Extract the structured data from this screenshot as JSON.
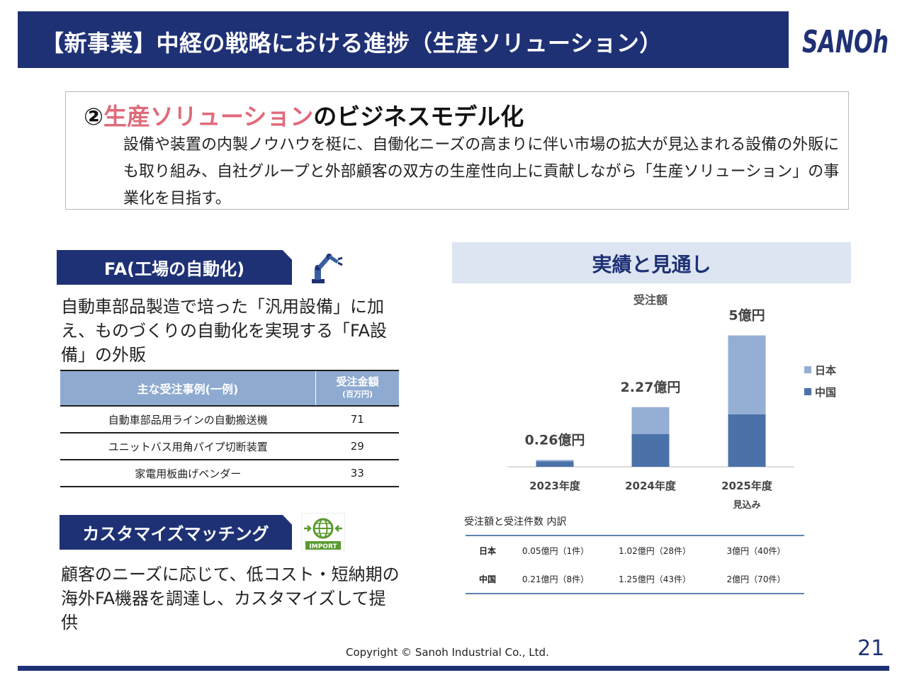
{
  "header": {
    "title": "【新事業】中経の戦略における進捗（生産ソリューション）",
    "logo_text": "SANOh",
    "brand_color": "#1f3175"
  },
  "intro": {
    "heading_prefix": "②",
    "heading_accent": "生産ソリューション",
    "heading_suffix": "のビジネスモデル化",
    "body": "設備や装置の内製ノウハウを梃に、自働化ニーズの高まりに伴い市場の拡大が見込まれる設備の外販にも取り組み、自社グループと外部顧客の双方の生産性向上に貢献しながら「生産ソリューション」の事業化を目指す。",
    "accent_color": "#e06b7b"
  },
  "fa": {
    "tab_label": "FA(工場の自動化)",
    "description": "自動車部品製造で培った「汎用設備」に加え、ものづくりの自動化を実現する「FA設備」の外販",
    "table": {
      "col1": "主な受注事例(一例)",
      "col2": "受注金額",
      "col2_unit": "(百万円)",
      "rows": [
        {
          "name": "自動車部品用ラインの自動搬送機",
          "amount": "71"
        },
        {
          "name": "ユニットバス用角パイプ切断装置",
          "amount": "29"
        },
        {
          "name": "家電用板曲げベンダー",
          "amount": "33"
        }
      ]
    }
  },
  "customize": {
    "tab_label": "カスタマイズマッチング",
    "icon_text": "IMPORT",
    "description": "顧客のニーズに応じて、低コスト・短納期の海外FA機器を調達し、カスタマイズして提供"
  },
  "results": {
    "title": "実績と見通し"
  },
  "chart_data": {
    "type": "bar",
    "stacked": true,
    "title": "受注額",
    "ylabel": "",
    "xlabel": "",
    "unit": "億円",
    "categories": [
      "2023年度",
      "2024年度",
      "2025年度"
    ],
    "category_notes": [
      "",
      "",
      "見込み"
    ],
    "series": [
      {
        "name": "中国",
        "values": [
          0.21,
          1.25,
          2
        ],
        "color": "#4a72a8"
      },
      {
        "name": "日本",
        "values": [
          0.05,
          1.02,
          3
        ],
        "color": "#95aed4"
      }
    ],
    "totals_labels": [
      "0.26億円",
      "2.27億円",
      "5億円"
    ],
    "ylim": [
      0,
      5.5
    ],
    "legend": [
      {
        "name": "日本",
        "color": "#95aed4"
      },
      {
        "name": "中国",
        "color": "#4a72a8"
      }
    ],
    "legend_position": "right",
    "grid": false
  },
  "breakdown": {
    "label": "受注額と受注件数 内訳",
    "rows": [
      {
        "country": "日本",
        "y2023": "0.05億円（1件）",
        "y2024": "1.02億円（28件）",
        "y2025": "3億円（40件）"
      },
      {
        "country": "中国",
        "y2023": "0.21億円（8件）",
        "y2024": "1.25億円（43件）",
        "y2025": "2億円（70件）"
      }
    ]
  },
  "footer": {
    "copyright": "Copyright © Sanoh Industrial Co., Ltd.",
    "page": "21"
  }
}
